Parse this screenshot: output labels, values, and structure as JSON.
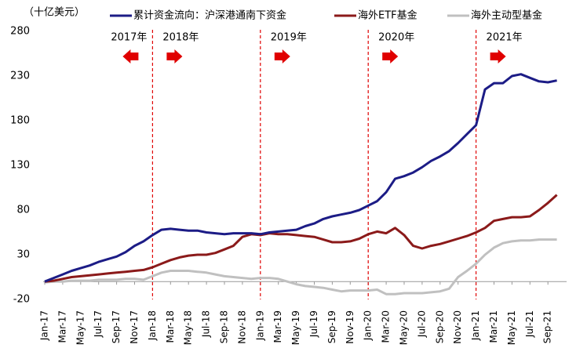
{
  "chart_data": {
    "type": "line",
    "unit_label": "（十亿美元）",
    "categories": [
      "Jan-17",
      null,
      "Mar-17",
      null,
      "May-17",
      null,
      "Jul-17",
      null,
      "Sep-17",
      null,
      "Nov-17",
      null,
      "Jan-18",
      null,
      "Mar-18",
      null,
      "May-18",
      null,
      "Jul-18",
      null,
      "Sep-18",
      null,
      "Nov-18",
      null,
      "Jan-19",
      null,
      "Mar-19",
      null,
      "May-19",
      null,
      "Jul-19",
      null,
      "Sep-19",
      null,
      "Nov-19",
      null,
      "Jan-20",
      null,
      "Mar-20",
      null,
      "May-20",
      null,
      "Jul-20",
      null,
      "Sep-20",
      null,
      "Nov-20",
      null,
      "Jan-21",
      null,
      "Mar-21",
      null,
      "May-21",
      null,
      "Jul-21",
      null,
      "Sep-21",
      null
    ],
    "series": [
      {
        "name": "累计资金流向：沪深港通南下资金",
        "color": "#1c1c86",
        "values": [
          0,
          4,
          8,
          12,
          15,
          18,
          22,
          25,
          28,
          33,
          40,
          45,
          52,
          58,
          59,
          58,
          57,
          57,
          55,
          54,
          53,
          54,
          54,
          54,
          53,
          55,
          56,
          57,
          58,
          62,
          65,
          70,
          73,
          75,
          77,
          80,
          85,
          90,
          100,
          115,
          118,
          122,
          128,
          135,
          140,
          146,
          155,
          165,
          175,
          215,
          222,
          222,
          230,
          232,
          228,
          224,
          223,
          225
        ]
      },
      {
        "name": "海外ETF基金",
        "color": "#8b1a1a",
        "values": [
          0,
          1,
          3,
          5,
          6,
          7,
          8,
          9,
          10,
          11,
          12,
          13,
          16,
          20,
          24,
          27,
          29,
          30,
          30,
          32,
          36,
          40,
          50,
          53,
          52,
          54,
          53,
          53,
          52,
          51,
          50,
          47,
          44,
          44,
          45,
          48,
          53,
          56,
          54,
          60,
          52,
          40,
          37,
          40,
          42,
          45,
          48,
          51,
          55,
          60,
          68,
          70,
          72,
          72,
          73,
          80,
          88,
          97
        ]
      },
      {
        "name": "海外主动型基金",
        "color": "#c0c0c0",
        "values": [
          -1,
          0,
          0,
          1,
          1,
          1,
          2,
          2,
          2,
          3,
          3,
          2,
          6,
          10,
          12,
          12,
          12,
          11,
          10,
          8,
          6,
          5,
          4,
          3,
          4,
          4,
          3,
          0,
          -3,
          -5,
          -6,
          -7,
          -9,
          -11,
          -10,
          -10,
          -10,
          -9,
          -14,
          -14,
          -13,
          -13,
          -13,
          -12,
          -11,
          -8,
          5,
          12,
          20,
          30,
          38,
          43,
          45,
          46,
          46,
          47,
          47,
          47
        ]
      }
    ],
    "ylim": [
      -20,
      280
    ],
    "yticks": [
      -20,
      30,
      80,
      130,
      180,
      230,
      280
    ],
    "vlines": [
      12,
      24,
      36,
      48
    ],
    "vline_color": "#e00000",
    "annotations": [
      {
        "text": "2017年",
        "x": 12,
        "direction": "left"
      },
      {
        "text": "2018年",
        "x": 12,
        "direction": "right"
      },
      {
        "text": "2019年",
        "x": 24,
        "direction": "right"
      },
      {
        "text": "2020年",
        "x": 36,
        "direction": "right"
      },
      {
        "text": "2021年",
        "x": 48,
        "direction": "right"
      }
    ]
  }
}
